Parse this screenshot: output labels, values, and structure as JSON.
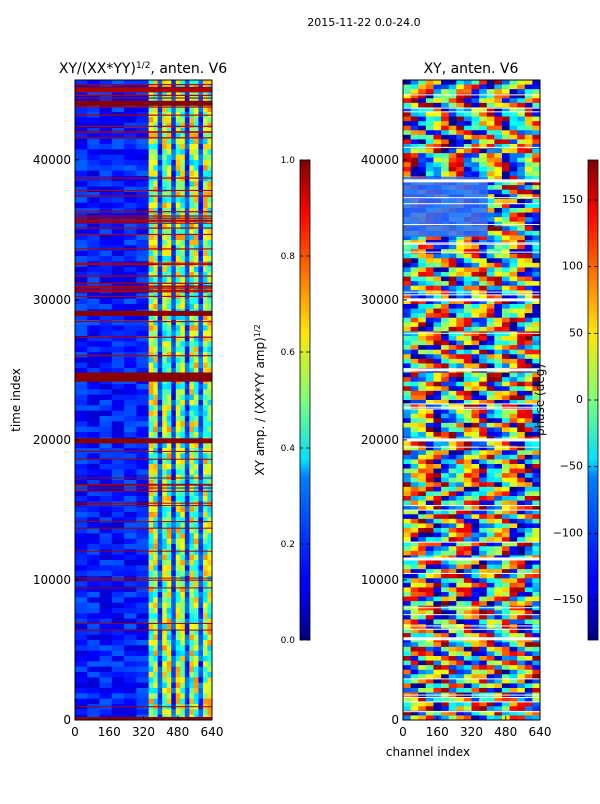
{
  "suptitle": "2015-11-22 0.0-24.0",
  "chart_data": [
    {
      "type": "heatmap",
      "title_prefix": "XY/(XX*YY)",
      "title_exponent": "1/2",
      "title_suffix": ", anten. V6",
      "xlabel": "",
      "ylabel": "time index",
      "xlim": [
        0,
        640
      ],
      "ylim": [
        0,
        45700
      ],
      "xticks": [
        "0",
        "160",
        "320",
        "480",
        "640"
      ],
      "xtick_values": [
        0,
        160,
        320,
        480,
        640
      ],
      "yticks": [
        "0",
        "10000",
        "20000",
        "30000",
        "40000"
      ],
      "ytick_values": [
        0,
        10000,
        20000,
        30000,
        40000
      ],
      "colormap": "jet",
      "colorbar": {
        "label_prefix": "XY amp. / (XX*YY amp)",
        "label_exponent": "1/2",
        "range": [
          0.0,
          1.0
        ],
        "ticks": [
          "0.0",
          "0.2",
          "0.4",
          "0.6",
          "0.8",
          "1.0"
        ],
        "tick_values": [
          0.0,
          0.2,
          0.4,
          0.6,
          0.8,
          1.0
        ]
      },
      "bright_band_channels": [
        400,
        640
      ],
      "saturated_time_rows": [
        0,
        19900,
        24300,
        24600,
        29000,
        44000,
        45000
      ]
    },
    {
      "type": "heatmap",
      "title": "XY, anten. V6",
      "xlabel": "channel index",
      "ylabel": "",
      "xlim": [
        0,
        640
      ],
      "ylim": [
        0,
        45700
      ],
      "xticks": [
        "0",
        "160",
        "320",
        "480",
        "640"
      ],
      "xtick_values": [
        0,
        160,
        320,
        480,
        640
      ],
      "yticks": [
        "0",
        "10000",
        "20000",
        "30000",
        "40000"
      ],
      "ytick_values": [
        0,
        10000,
        20000,
        30000,
        40000
      ],
      "colormap": "jet",
      "colorbar": {
        "label": "phase (deg)",
        "range": [
          -180,
          180
        ],
        "ticks": [
          "−150",
          "−100",
          "−50",
          "0",
          "50",
          "100",
          "150"
        ],
        "tick_values": [
          -150,
          -100,
          -50,
          0,
          50,
          100,
          150
        ]
      },
      "white_gap_rows": [
        5800,
        11500,
        20000,
        25000,
        30000,
        38500
      ]
    }
  ]
}
